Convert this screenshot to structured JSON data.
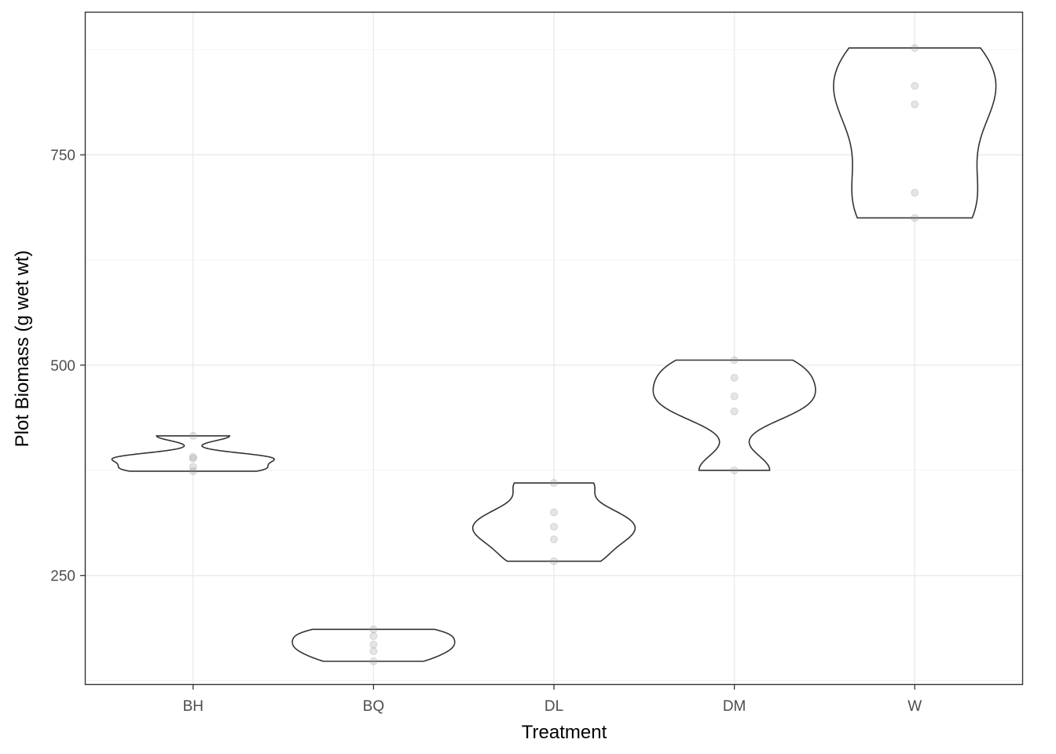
{
  "chart_data": {
    "type": "violin",
    "title": "",
    "xlabel": "Treatment",
    "ylabel": "Plot Biomass (g wet wt)",
    "categories": [
      "BH",
      "BQ",
      "DL",
      "DM",
      "W"
    ],
    "y_ticks": [
      250,
      500,
      750
    ],
    "y_tick_labels": [
      "250",
      "500",
      "750"
    ],
    "ylim": [
      120,
      920
    ],
    "grid": true,
    "groups": [
      {
        "name": "BH",
        "points": [
          374,
          379,
          389,
          391,
          416
        ]
      },
      {
        "name": "BQ",
        "points": [
          148,
          160,
          168,
          178,
          186
        ]
      },
      {
        "name": "DL",
        "points": [
          267,
          293,
          308,
          325,
          360
        ]
      },
      {
        "name": "DM",
        "points": [
          375,
          445,
          463,
          485,
          506
        ]
      },
      {
        "name": "W",
        "points": [
          675,
          705,
          810,
          832,
          877
        ]
      }
    ]
  }
}
